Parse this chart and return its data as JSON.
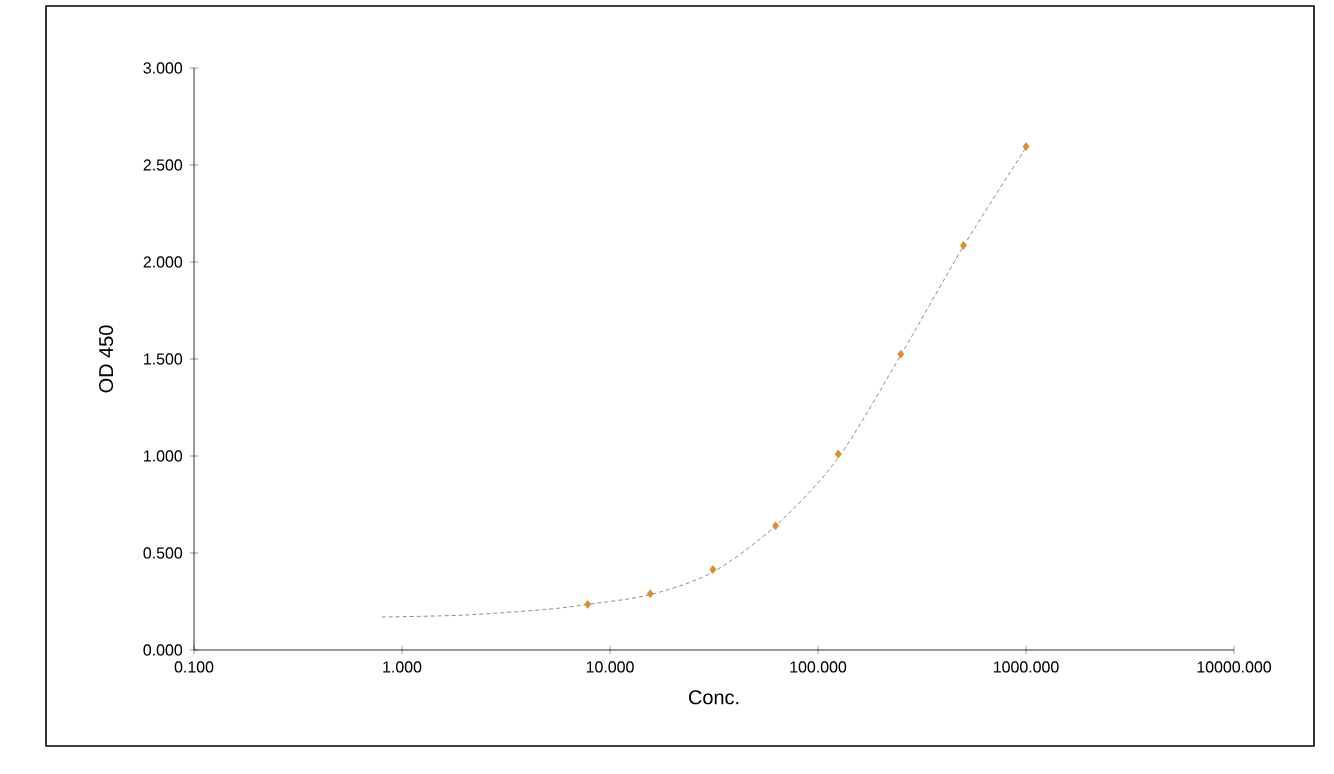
{
  "chart_data": {
    "type": "scatter",
    "xlabel": "Conc.",
    "ylabel": "OD 450",
    "log": "x",
    "xlim": [
      0.1,
      10000
    ],
    "ylim": [
      0,
      3
    ],
    "xticks": [
      {
        "value": 0.1,
        "label": "0.100"
      },
      {
        "value": 1,
        "label": "1.000"
      },
      {
        "value": 10,
        "label": "10.000"
      },
      {
        "value": 100,
        "label": "100.000"
      },
      {
        "value": 1000,
        "label": "1000.000"
      },
      {
        "value": 10000,
        "label": "10000.000"
      }
    ],
    "yticks": [
      {
        "value": 0,
        "label": "0.000"
      },
      {
        "value": 0.5,
        "label": "0.500"
      },
      {
        "value": 1,
        "label": "1.000"
      },
      {
        "value": 1.5,
        "label": "1.500"
      },
      {
        "value": 2,
        "label": "2.000"
      },
      {
        "value": 2.5,
        "label": "2.500"
      },
      {
        "value": 3,
        "label": "3.000"
      }
    ],
    "series": [
      {
        "type": "line",
        "color": "#707070",
        "marker": "none",
        "line_style": "dashed",
        "x": [
          0.8,
          2,
          5,
          7.8,
          15.6,
          31,
          62.5,
          125,
          250,
          500,
          1000
        ],
        "values": [
          0.17,
          0.18,
          0.21,
          0.235,
          0.285,
          0.4,
          0.64,
          0.99,
          1.52,
          2.08,
          2.59
        ]
      },
      {
        "color": "#e08a2b",
        "marker": "diamond",
        "x": [
          7.8125,
          15.625,
          31.25,
          62.5,
          125,
          250,
          500,
          1000
        ],
        "values": [
          0.235,
          0.29,
          0.415,
          0.64,
          1.01,
          1.525,
          2.085,
          2.595
        ]
      }
    ]
  }
}
